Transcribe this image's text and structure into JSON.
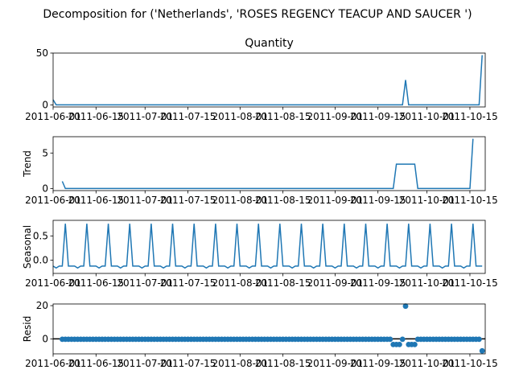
{
  "chart_data": {
    "type": "line",
    "title": "Decomposition for ('Netherlands', 'ROSES REGENCY TEACUP AND SAUCER ')",
    "x_start": "2011-06-01",
    "x_end": "2011-10-20",
    "x_ticks": [
      "2011-06-01",
      "2011-06-15",
      "2011-07-01",
      "2011-07-15",
      "2011-08-01",
      "2011-08-15",
      "2011-09-01",
      "2011-09-15",
      "2011-10-01",
      "2011-10-15"
    ],
    "panels": [
      {
        "kind": "line",
        "title": "Quantity",
        "ylabel": "",
        "ylim": [
          -2,
          50
        ],
        "yticks": [
          0,
          50
        ],
        "points": [
          [
            "2011-06-01",
            5
          ],
          [
            "2011-06-02",
            0
          ],
          [
            "2011-09-23",
            0
          ],
          [
            "2011-09-24",
            24
          ],
          [
            "2011-09-25",
            0
          ],
          [
            "2011-10-18",
            0
          ],
          [
            "2011-10-19",
            48
          ]
        ]
      },
      {
        "kind": "line",
        "title": "",
        "ylabel": "Trend",
        "ylim": [
          -0.3,
          7.3
        ],
        "yticks": [
          0,
          5
        ],
        "points": [
          [
            "2011-06-04",
            1.0
          ],
          [
            "2011-06-05",
            0
          ],
          [
            "2011-09-20",
            0
          ],
          [
            "2011-09-21",
            3.43
          ],
          [
            "2011-09-27",
            3.43
          ],
          [
            "2011-09-28",
            0
          ],
          [
            "2011-10-15",
            0
          ],
          [
            "2011-10-16",
            7
          ]
        ]
      },
      {
        "kind": "seasonal",
        "title": "",
        "ylabel": "Seasonal",
        "ylim": [
          -0.27,
          0.82
        ],
        "yticks": [
          0.0,
          0.5
        ],
        "ytick_labels": [
          "0.0",
          "0.5"
        ],
        "pattern": [
          0.75,
          -0.12,
          -0.12,
          -0.12,
          -0.16,
          -0.12,
          -0.12
        ],
        "pattern_start": "2011-06-05"
      },
      {
        "kind": "scatter",
        "title": "",
        "ylabel": "Resid",
        "ylim": [
          -9,
          21
        ],
        "yticks": [
          0,
          20
        ],
        "baseline": 0,
        "outliers": [
          [
            "2011-09-24",
            19.7
          ],
          [
            "2011-10-19",
            -7.2
          ],
          [
            "2011-09-20",
            -3.4
          ],
          [
            "2011-09-21",
            -3.4
          ],
          [
            "2011-09-22",
            -3.4
          ],
          [
            "2011-09-25",
            -3.4
          ],
          [
            "2011-09-26",
            -3.4
          ],
          [
            "2011-09-27",
            -3.4
          ]
        ],
        "range": [
          "2011-06-04",
          "2011-10-18"
        ]
      }
    ]
  },
  "colors": {
    "series": "#1f77b4",
    "axis": "#000000"
  }
}
